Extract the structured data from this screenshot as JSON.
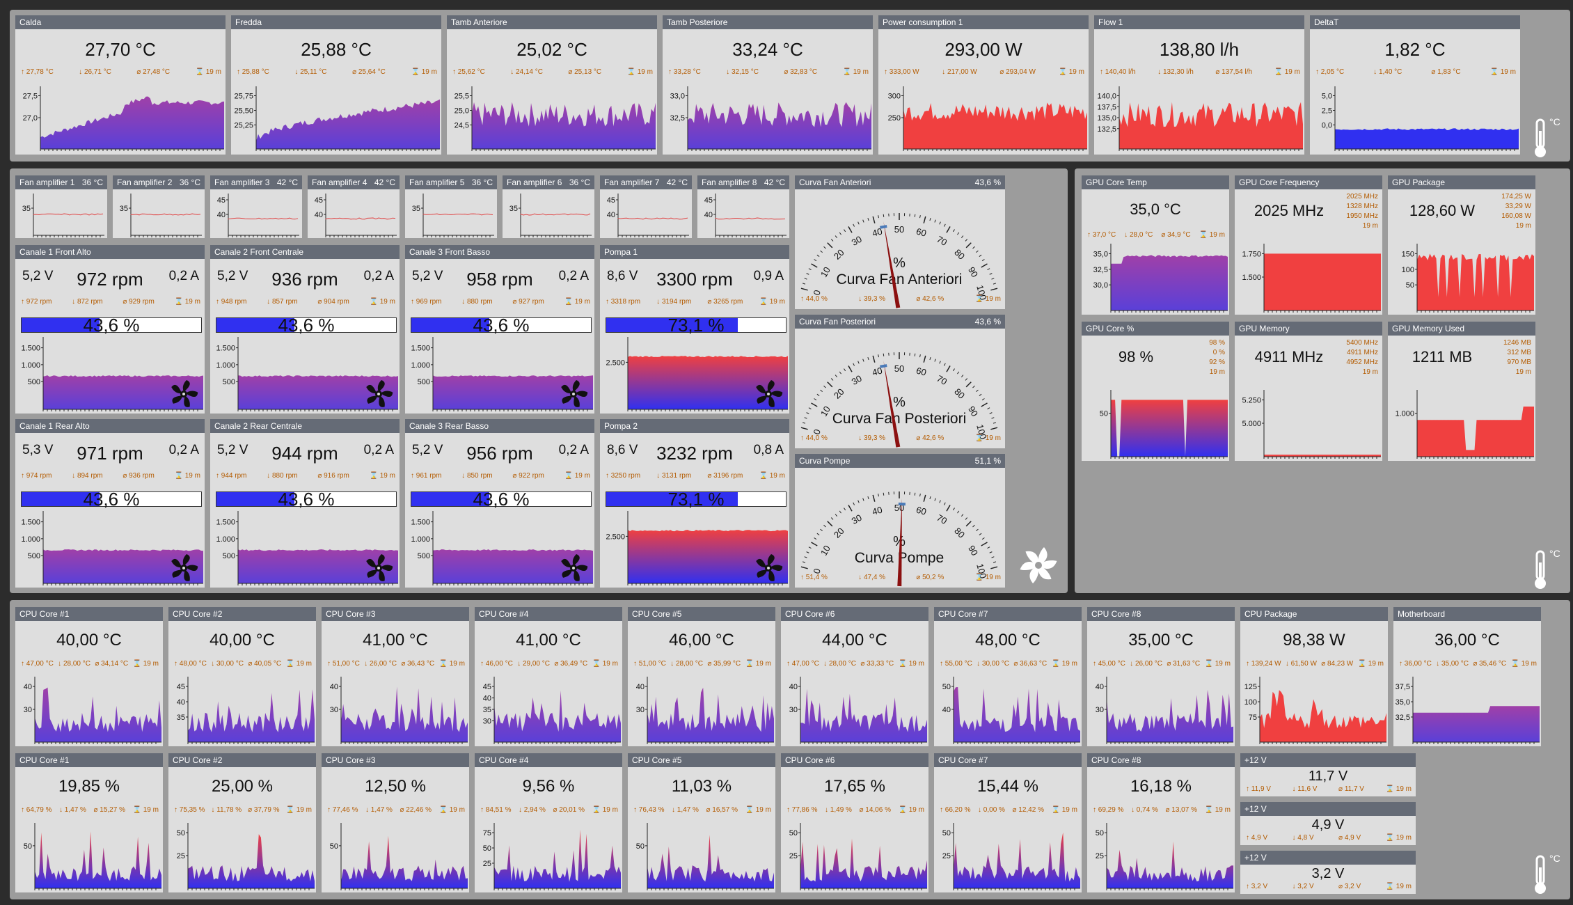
{
  "top": [
    {
      "title": "Calda",
      "value": "27,70 °C",
      "stats": [
        "27,78 °C",
        "26,71 °C",
        "27,48 °C",
        "19 m"
      ],
      "ticks": [
        "27,5",
        "27,0"
      ],
      "color": "purple",
      "pattern": "rise"
    },
    {
      "title": "Fredda",
      "value": "25,88 °C",
      "stats": [
        "25,88 °C",
        "25,11 °C",
        "25,64 °C",
        "19 m"
      ],
      "ticks": [
        "25,75",
        "25,50",
        "25,25"
      ],
      "color": "purple",
      "pattern": "rise2"
    },
    {
      "title": "Tamb Anteriore",
      "value": "25,02 °C",
      "stats": [
        "25,62 °C",
        "24,14 °C",
        "25,13 °C",
        "19 m"
      ],
      "ticks": [
        "25,5",
        "25,0",
        "24,5"
      ],
      "color": "purple",
      "pattern": "noisy"
    },
    {
      "title": "Tamb Posteriore",
      "value": "33,24 °C",
      "stats": [
        "33,28 °C",
        "32,15 °C",
        "32,83 °C",
        "19 m"
      ],
      "ticks": [
        "33,0",
        "32,5"
      ],
      "color": "purple",
      "pattern": "noisy"
    },
    {
      "title": "Power consumption 1",
      "value": "293,00 W",
      "stats": [
        "333,00 W",
        "217,00 W",
        "293,04 W",
        "19 m"
      ],
      "ticks": [
        "300",
        "250"
      ],
      "color": "red",
      "pattern": "noisyhigh"
    },
    {
      "title": "Flow 1",
      "value": "138,80 l/h",
      "stats": [
        "140,40 l/h",
        "132,30 l/h",
        "137,54 l/h",
        "19 m"
      ],
      "ticks": [
        "140,0",
        "137,5",
        "135,0",
        "132,5"
      ],
      "color": "red",
      "pattern": "noisy"
    },
    {
      "title": "DeltaT",
      "value": "1,82 °C",
      "stats": [
        "2,05 °C",
        "1,40 °C",
        "1,83 °C",
        "19 m"
      ],
      "ticks": [
        "5,0",
        "2,5",
        "0,0"
      ],
      "color": "blue",
      "pattern": "flatlow"
    }
  ],
  "amps": [
    {
      "title": "Fan amplifier 1",
      "temp": "36 °C",
      "ticks": [
        "35"
      ]
    },
    {
      "title": "Fan amplifier 2",
      "temp": "36 °C",
      "ticks": [
        "35"
      ]
    },
    {
      "title": "Fan amplifier 3",
      "temp": "42 °C",
      "ticks": [
        "45",
        "40"
      ]
    },
    {
      "title": "Fan amplifier 4",
      "temp": "42 °C",
      "ticks": [
        "45",
        "40"
      ]
    },
    {
      "title": "Fan amplifier 5",
      "temp": "36 °C",
      "ticks": [
        "35"
      ]
    },
    {
      "title": "Fan amplifier 6",
      "temp": "36 °C",
      "ticks": [
        "35"
      ]
    },
    {
      "title": "Fan amplifier 7",
      "temp": "42 °C",
      "ticks": [
        "45",
        "40"
      ]
    },
    {
      "title": "Fan amplifier 8",
      "temp": "42 °C",
      "ticks": [
        "45",
        "40"
      ]
    }
  ],
  "fans": [
    {
      "title": "Canale 1 Front Alto",
      "volt": "5,2 V",
      "rpm": "972 rpm",
      "amp": "0,2 A",
      "stats": [
        "972 rpm",
        "872 rpm",
        "929 rpm",
        "19 m"
      ],
      "pct": "43,6 %",
      "pctv": 0.436,
      "ticks": [
        "1.500",
        "1.000",
        "500"
      ],
      "color": "purple"
    },
    {
      "title": "Canale 2 Front Centrale",
      "volt": "5,2 V",
      "rpm": "936 rpm",
      "amp": "0,2 A",
      "stats": [
        "948 rpm",
        "857 rpm",
        "904 rpm",
        "19 m"
      ],
      "pct": "43,6 %",
      "pctv": 0.436,
      "ticks": [
        "1.500",
        "1.000",
        "500"
      ],
      "color": "purple"
    },
    {
      "title": "Canale 3 Front Basso",
      "volt": "5,2 V",
      "rpm": "958 rpm",
      "amp": "0,2 A",
      "stats": [
        "969 rpm",
        "880 rpm",
        "927 rpm",
        "19 m"
      ],
      "pct": "43,6 %",
      "pctv": 0.436,
      "ticks": [
        "1.500",
        "1.000",
        "500"
      ],
      "color": "purple"
    },
    {
      "title": "Pompa 1",
      "volt": "8,6 V",
      "rpm": "3300 rpm",
      "amp": "0,9 A",
      "stats": [
        "3318 rpm",
        "3194 rpm",
        "3265 rpm",
        "19 m"
      ],
      "pct": "73,1 %",
      "pctv": 0.731,
      "ticks": [
        "2.500"
      ],
      "color": "red"
    },
    {
      "title": "Canale 1 Rear Alto",
      "volt": "5,3 V",
      "rpm": "971 rpm",
      "amp": "0,2 A",
      "stats": [
        "974 rpm",
        "894 rpm",
        "936 rpm",
        "19 m"
      ],
      "pct": "43,6 %",
      "pctv": 0.436,
      "ticks": [
        "1.500",
        "1.000",
        "500"
      ],
      "color": "purple"
    },
    {
      "title": "Canale 2 Rear Centrale",
      "volt": "5,2 V",
      "rpm": "944 rpm",
      "amp": "0,2 A",
      "stats": [
        "944 rpm",
        "880 rpm",
        "916 rpm",
        "19 m"
      ],
      "pct": "43,6 %",
      "pctv": 0.436,
      "ticks": [
        "1.500",
        "1.000",
        "500"
      ],
      "color": "purple"
    },
    {
      "title": "Canale 3 Rear Basso",
      "volt": "5,2 V",
      "rpm": "956 rpm",
      "amp": "0,2 A",
      "stats": [
        "961 rpm",
        "850 rpm",
        "922 rpm",
        "19 m"
      ],
      "pct": "43,6 %",
      "pctv": 0.436,
      "ticks": [
        "1.500",
        "1.000",
        "500"
      ],
      "color": "purple"
    },
    {
      "title": "Pompa 2",
      "volt": "8,6 V",
      "rpm": "3232 rpm",
      "amp": "0,8 A",
      "stats": [
        "3250 rpm",
        "3131 rpm",
        "3196 rpm",
        "19 m"
      ],
      "pct": "73,1 %",
      "pctv": 0.731,
      "ticks": [
        "2.500"
      ],
      "color": "red"
    }
  ],
  "gauges": [
    {
      "title": "Curva Fan Anteriori",
      "value": "43,6 %",
      "label": "Curva Fan Anteriori",
      "unit": "%",
      "level": 0.436,
      "stats": [
        "44,0 %",
        "39,3 %",
        "42,6 %",
        "19 m"
      ]
    },
    {
      "title": "Curva Fan Posteriori",
      "value": "43,6 %",
      "label": "Curva Fan Posteriori",
      "unit": "%",
      "level": 0.436,
      "stats": [
        "44,0 %",
        "39,3 %",
        "42,6 %",
        "19 m"
      ]
    },
    {
      "title": "Curva Pompe",
      "value": "51,1 %",
      "label": "Curva Pompe",
      "unit": "%",
      "level": 0.511,
      "stats": [
        "51,4 %",
        "47,4 %",
        "50,2 %",
        "19 m"
      ]
    }
  ],
  "gauge_scale": [
    "0",
    "10",
    "20",
    "30",
    "40",
    "50",
    "60",
    "70",
    "80",
    "90",
    "100"
  ],
  "gpu": [
    {
      "title": "GPU Core Temp",
      "value": "35,0 °C",
      "stats": [
        "37,0 °C",
        "28,0 °C",
        "34,9 °C",
        "19 m"
      ],
      "ticks": [
        "35,0",
        "32,5",
        "30,0"
      ],
      "color": "purple",
      "side": false
    },
    {
      "title": "GPU Core Frequency",
      "value": "2025 MHz",
      "stats": [
        "2025 MHz",
        "1328 MHz",
        "1950 MHz",
        "19 m"
      ],
      "ticks": [
        "1.750",
        "1.500"
      ],
      "color": "red",
      "side": true
    },
    {
      "title": "GPU Package",
      "value": "128,60 W",
      "stats": [
        "174,25 W",
        "33,29 W",
        "160,08 W",
        "19 m"
      ],
      "ticks": [
        "150",
        "100",
        "50"
      ],
      "color": "red",
      "side": true
    },
    {
      "title": "GPU Core %",
      "value": "98 %",
      "stats": [
        "98 %",
        "0 %",
        "92 %",
        "19 m"
      ],
      "ticks": [
        "50"
      ],
      "color": "blue",
      "side": true
    },
    {
      "title": "GPU Memory",
      "value": "4911 MHz",
      "stats": [
        "5400 MHz",
        "4911 MHz",
        "4952 MHz",
        "19 m"
      ],
      "ticks": [
        "5.250",
        "5.000"
      ],
      "color": "red",
      "side": true
    },
    {
      "title": "GPU Memory Used",
      "value": "1211 MB",
      "stats": [
        "1246 MB",
        "312 MB",
        "970 MB",
        "19 m"
      ],
      "ticks": [
        "1.000"
      ],
      "color": "red",
      "side": true
    }
  ],
  "cpu_temp": [
    {
      "title": "CPU Core #1",
      "value": "40,00 °C",
      "stats": [
        "47,00 °C",
        "28,00 °C",
        "34,14 °C",
        "19 m"
      ],
      "ticks": [
        "40",
        "30"
      ]
    },
    {
      "title": "CPU Core #2",
      "value": "40,00 °C",
      "stats": [
        "48,00 °C",
        "30,00 °C",
        "40,05 °C",
        "19 m"
      ],
      "ticks": [
        "45",
        "40",
        "35"
      ]
    },
    {
      "title": "CPU Core #3",
      "value": "41,00 °C",
      "stats": [
        "51,00 °C",
        "26,00 °C",
        "36,43 °C",
        "19 m"
      ],
      "ticks": [
        "40",
        "30"
      ]
    },
    {
      "title": "CPU Core #4",
      "value": "41,00 °C",
      "stats": [
        "46,00 °C",
        "29,00 °C",
        "36,49 °C",
        "19 m"
      ],
      "ticks": [
        "45",
        "40",
        "35",
        "30"
      ]
    },
    {
      "title": "CPU Core #5",
      "value": "46,00 °C",
      "stats": [
        "51,00 °C",
        "28,00 °C",
        "35,99 °C",
        "19 m"
      ],
      "ticks": [
        "40",
        "30"
      ]
    },
    {
      "title": "CPU Core #6",
      "value": "44,00 °C",
      "stats": [
        "47,00 °C",
        "28,00 °C",
        "33,33 °C",
        "19 m"
      ],
      "ticks": [
        "40",
        "30"
      ]
    },
    {
      "title": "CPU Core #7",
      "value": "48,00 °C",
      "stats": [
        "55,00 °C",
        "30,00 °C",
        "36,63 °C",
        "19 m"
      ],
      "ticks": [
        "50",
        "40"
      ]
    },
    {
      "title": "CPU Core #8",
      "value": "35,00 °C",
      "stats": [
        "45,00 °C",
        "26,00 °C",
        "31,63 °C",
        "19 m"
      ],
      "ticks": [
        "40",
        "30"
      ]
    },
    {
      "title": "CPU Package",
      "value": "98,38 W",
      "stats": [
        "139,24 W",
        "61,50 W",
        "84,23 W",
        "19 m"
      ],
      "ticks": [
        "125",
        "100",
        "75"
      ]
    },
    {
      "title": "Motherboard",
      "value": "36,00 °C",
      "stats": [
        "36,00 °C",
        "35,00 °C",
        "35,46 °C",
        "19 m"
      ],
      "ticks": [
        "37,5",
        "35,0",
        "32,5"
      ]
    }
  ],
  "cpu_load": [
    {
      "title": "CPU Core #1",
      "value": "19,85 %",
      "stats": [
        "64,79 %",
        "1,47 %",
        "15,27 %",
        "19 m"
      ],
      "ticks": [
        "50"
      ]
    },
    {
      "title": "CPU Core #2",
      "value": "25,00 %",
      "stats": [
        "75,35 %",
        "11,78 %",
        "37,79 %",
        "19 m"
      ],
      "ticks": [
        "50",
        "25"
      ]
    },
    {
      "title": "CPU Core #3",
      "value": "12,50 %",
      "stats": [
        "77,46 %",
        "1,47 %",
        "22,46 %",
        "19 m"
      ],
      "ticks": [
        "50"
      ]
    },
    {
      "title": "CPU Core #4",
      "value": "9,56 %",
      "stats": [
        "84,51 %",
        "2,94 %",
        "20,01 %",
        "19 m"
      ],
      "ticks": [
        "75",
        "50",
        "25"
      ]
    },
    {
      "title": "CPU Core #5",
      "value": "11,03 %",
      "stats": [
        "76,43 %",
        "1,47 %",
        "16,57 %",
        "19 m"
      ],
      "ticks": [
        "50"
      ]
    },
    {
      "title": "CPU Core #6",
      "value": "17,65 %",
      "stats": [
        "77,86 %",
        "1,49 %",
        "14,06 %",
        "19 m"
      ],
      "ticks": [
        "50",
        "25"
      ]
    },
    {
      "title": "CPU Core #7",
      "value": "15,44 %",
      "stats": [
        "66,20 %",
        "0,00 %",
        "12,42 %",
        "19 m"
      ],
      "ticks": [
        "50",
        "25"
      ]
    },
    {
      "title": "CPU Core #8",
      "value": "16,18 %",
      "stats": [
        "69,29 %",
        "0,74 %",
        "13,07 %",
        "19 m"
      ],
      "ticks": [
        "50",
        "25"
      ]
    }
  ],
  "volts": [
    {
      "title": "+12 V",
      "value": "11,7 V",
      "stats": [
        "11,9 V",
        "11,6 V",
        "11,7 V",
        "19 m"
      ]
    },
    {
      "title": "+12 V",
      "value": "4,9 V",
      "stats": [
        "4,9 V",
        "4,8 V",
        "4,9 V",
        "19 m"
      ]
    },
    {
      "title": "+12 V",
      "value": "3,2 V",
      "stats": [
        "3,2 V",
        "3,2 V",
        "3,2 V",
        "19 m"
      ]
    }
  ],
  "thermo_unit": "°C",
  "colors": {
    "header": "#656b76",
    "purple_top": "#a040a8",
    "purple_bottom": "#5a40d8",
    "red": "#f04040",
    "blue": "#3030f0",
    "accent": "#b35b00"
  },
  "icons": [
    "fan-icon",
    "thermometer-icon",
    "pinwheel-icon",
    "max-icon",
    "min-icon",
    "avg-icon",
    "time-icon"
  ]
}
